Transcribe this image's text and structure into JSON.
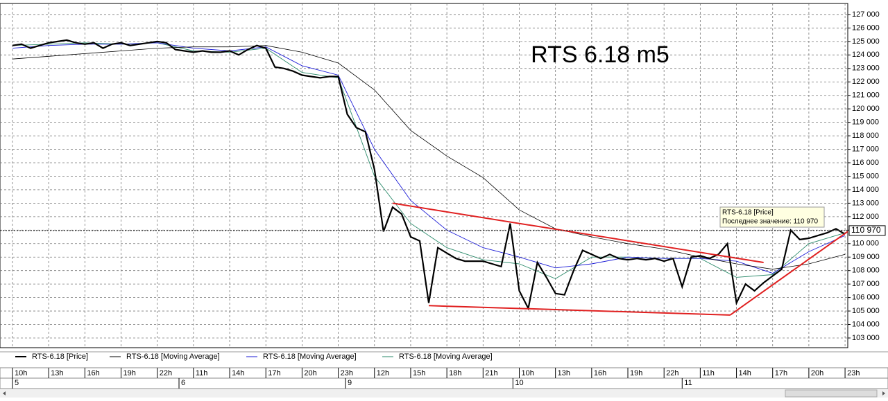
{
  "chart_data": {
    "type": "line",
    "title": "RTS 6.18 m5",
    "ylim": [
      102280,
      127820
    ],
    "xlim": [
      -1.38,
      92.3
    ],
    "grid": true,
    "yticks": [
      {
        "value": 103000,
        "label": "103 000"
      },
      {
        "value": 104000,
        "label": "104 000"
      },
      {
        "value": 105000,
        "label": "105 000"
      },
      {
        "value": 106000,
        "label": "106 000"
      },
      {
        "value": 107000,
        "label": "107 000"
      },
      {
        "value": 108000,
        "label": "108 000"
      },
      {
        "value": 109000,
        "label": "109 000"
      },
      {
        "value": 110000,
        "label": "110 000"
      },
      {
        "value": 111000,
        "label": "111 000"
      },
      {
        "value": 112000,
        "label": "112 000"
      },
      {
        "value": 113000,
        "label": "113 000"
      },
      {
        "value": 114000,
        "label": "114 000"
      },
      {
        "value": 115000,
        "label": "115 000"
      },
      {
        "value": 116000,
        "label": "116 000"
      },
      {
        "value": 117000,
        "label": "117 000"
      },
      {
        "value": 118000,
        "label": "118 000"
      },
      {
        "value": 119000,
        "label": "119 000"
      },
      {
        "value": 120000,
        "label": "120 000"
      },
      {
        "value": 121000,
        "label": "121 000"
      },
      {
        "value": 122000,
        "label": "122 000"
      },
      {
        "value": 123000,
        "label": "123 000"
      },
      {
        "value": 124000,
        "label": "124 000"
      },
      {
        "value": 125000,
        "label": "125 000"
      },
      {
        "value": 126000,
        "label": "126 000"
      },
      {
        "value": 127000,
        "label": "127 000"
      }
    ],
    "xticks": [
      {
        "value": 0,
        "label": "10h"
      },
      {
        "value": 4,
        "label": "13h"
      },
      {
        "value": 8,
        "label": "16h"
      },
      {
        "value": 12,
        "label": "19h"
      },
      {
        "value": 16,
        "label": "22h"
      },
      {
        "value": 20,
        "label": "11h"
      },
      {
        "value": 24,
        "label": "14h"
      },
      {
        "value": 28,
        "label": "17h"
      },
      {
        "value": 32,
        "label": "20h"
      },
      {
        "value": 36,
        "label": "23h"
      },
      {
        "value": 40,
        "label": "12h"
      },
      {
        "value": 44,
        "label": "15h"
      },
      {
        "value": 48,
        "label": "18h"
      },
      {
        "value": 52,
        "label": "21h"
      },
      {
        "value": 56,
        "label": "10h"
      },
      {
        "value": 60,
        "label": "13h"
      },
      {
        "value": 64,
        "label": "16h"
      },
      {
        "value": 68,
        "label": "19h"
      },
      {
        "value": 72,
        "label": "22h"
      },
      {
        "value": 76,
        "label": "11h"
      },
      {
        "value": 80,
        "label": "14h"
      },
      {
        "value": 84,
        "label": "17h"
      },
      {
        "value": 88,
        "label": "20h"
      },
      {
        "value": 92,
        "label": "23h"
      }
    ],
    "day_ticks": [
      {
        "value": 0,
        "label": "5"
      },
      {
        "value": 18.4,
        "label": "6"
      },
      {
        "value": 36.8,
        "label": "9"
      },
      {
        "value": 55.3,
        "label": "10"
      },
      {
        "value": 74,
        "label": "11"
      }
    ],
    "series": [
      {
        "name": "RTS-6.18 [Price]",
        "color": "#000000",
        "width": 2.2,
        "values": [
          124700,
          124800,
          124500,
          124700,
          124900,
          125000,
          125100,
          124900,
          124800,
          124900,
          124500,
          124800,
          124900,
          124700,
          124800,
          124900,
          125000,
          124900,
          124400,
          124300,
          124200,
          124300,
          124200,
          124200,
          124300,
          124000,
          124400,
          124700,
          124500,
          123100,
          123000,
          122800,
          122500,
          122400,
          122300,
          122400,
          122400,
          119600,
          118600,
          118300,
          115500,
          110900,
          112700,
          112200,
          110500,
          110200,
          105600,
          109700,
          109300,
          108900,
          108700,
          108700,
          108700,
          108500,
          108300,
          111500,
          106500,
          105200,
          108600,
          107500,
          106300,
          106200,
          108000,
          109500,
          109200,
          108900,
          109200,
          108900,
          108800,
          108900,
          108800,
          108900,
          108700,
          108900,
          106800,
          109000,
          109100,
          108900,
          109200,
          110000,
          105600,
          107000,
          106500,
          107100,
          107600,
          108100,
          111000,
          110300,
          110400,
          110600,
          110800,
          111100,
          110700
        ]
      },
      {
        "name": "RTS-6.18 [Moving Average]",
        "color": "#000000",
        "width": 0.8,
        "x": [
          0,
          4,
          8,
          12,
          16,
          20,
          24,
          28,
          32,
          36,
          40,
          44,
          48,
          52,
          56,
          60,
          64,
          68,
          72,
          76,
          80,
          84,
          88,
          92
        ],
        "values": [
          123700,
          123900,
          124100,
          124300,
          124500,
          124600,
          124600,
          124700,
          124200,
          123400,
          121400,
          118400,
          116500,
          114900,
          112500,
          111100,
          110500,
          110000,
          109600,
          109000,
          108500,
          108100,
          108500,
          109200
        ]
      },
      {
        "name": "RTS-6.18 [Moving Average]",
        "color": "#1a1ad6",
        "width": 0.9,
        "x": [
          0,
          4,
          8,
          12,
          16,
          20,
          24,
          28,
          32,
          36,
          40,
          44,
          48,
          52,
          56,
          60,
          64,
          68,
          72,
          76,
          80,
          84,
          88,
          92
        ],
        "values": [
          124500,
          124700,
          124800,
          124800,
          124900,
          124500,
          124300,
          124600,
          123200,
          122500,
          117000,
          113200,
          111000,
          109700,
          109000,
          108200,
          108500,
          109000,
          108900,
          108900,
          108700,
          107800,
          109400,
          110600
        ]
      },
      {
        "name": "RTS-6.18 [Moving Average]",
        "color": "#2a8a6a",
        "width": 0.9,
        "x": [
          0,
          4,
          8,
          12,
          16,
          20,
          24,
          28,
          32,
          36,
          40,
          44,
          48,
          52,
          56,
          60,
          64,
          68,
          72,
          76,
          80,
          84,
          88,
          92
        ],
        "values": [
          124700,
          124800,
          124900,
          124800,
          124900,
          124300,
          124200,
          124500,
          122700,
          122300,
          115000,
          111500,
          109700,
          108800,
          108500,
          107400,
          109000,
          109000,
          108900,
          108900,
          107500,
          107700,
          110000,
          110800
        ]
      }
    ],
    "trendlines": [
      {
        "color": "#e02020",
        "x": [
          42,
          83
        ],
        "values": [
          113000,
          108600
        ]
      },
      {
        "color": "#e02020",
        "x": [
          46,
          79.3
        ],
        "values": [
          105400,
          104700
        ]
      },
      {
        "color": "#e02020",
        "x": [
          79.3,
          92.3
        ],
        "values": [
          104700,
          110900
        ]
      }
    ],
    "last_value": {
      "value": 110970,
      "label": "110 970"
    },
    "tooltip": [
      "RTS-6.18 [Price]",
      "Последнее значение: 110 970"
    ]
  }
}
